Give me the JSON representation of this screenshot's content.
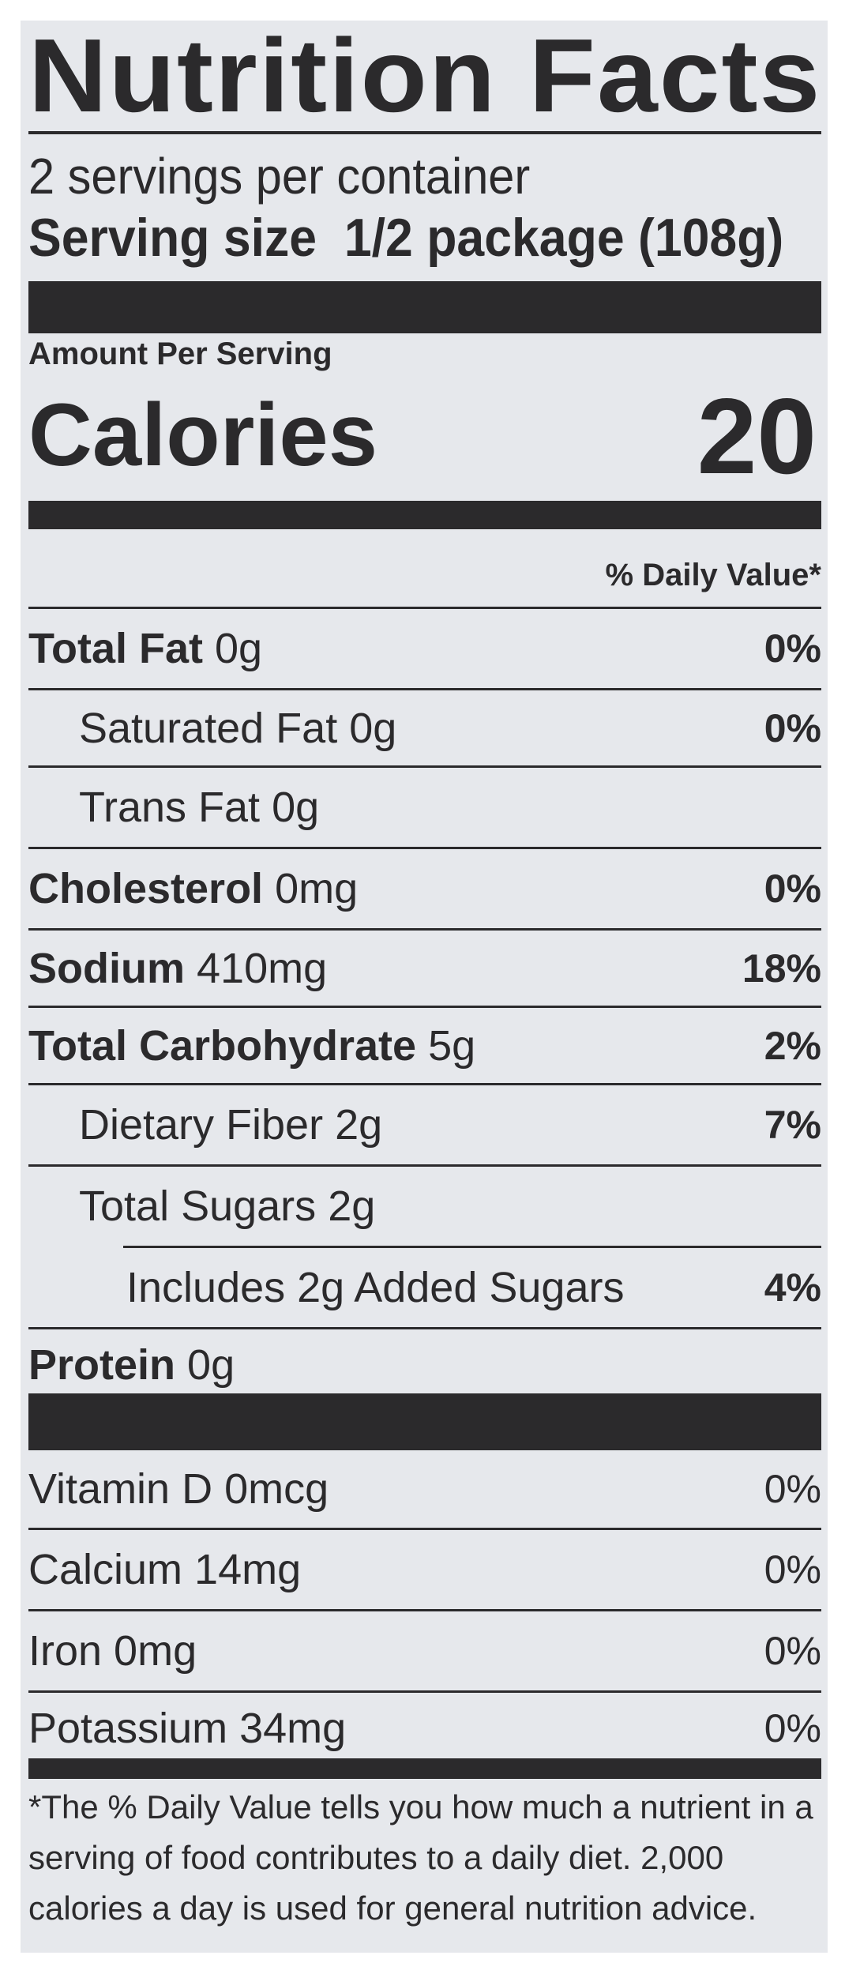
{
  "title": "Nutrition Facts",
  "servings_per_container": "2 servings per container",
  "serving_size": {
    "label": "Serving size",
    "value": "1/2 package (108g)"
  },
  "amount_per_serving": "Amount Per Serving",
  "calories": {
    "label": "Calories",
    "value": "20"
  },
  "daily_value_header": "% Daily Value*",
  "nutrients": [
    {
      "name": "Total Fat",
      "amount": "0g",
      "dv": "0%"
    },
    {
      "name": "Saturated Fat",
      "amount": "0g",
      "dv": "0%"
    },
    {
      "name": "Trans Fat",
      "amount": "0g",
      "dv": ""
    },
    {
      "name": "Cholesterol",
      "amount": "0mg",
      "dv": "0%"
    },
    {
      "name": "Sodium",
      "amount": "410mg",
      "dv": "18%"
    },
    {
      "name": "Total Carbohydrate",
      "amount": "5g",
      "dv": "2%"
    },
    {
      "name": "Dietary Fiber",
      "amount": "2g",
      "dv": "7%"
    },
    {
      "name": "Total Sugars",
      "amount": "2g",
      "dv": ""
    },
    {
      "name": "Includes 2g Added Sugars",
      "amount": "",
      "dv": "4%"
    },
    {
      "name": "Protein",
      "amount": "0g",
      "dv": ""
    }
  ],
  "vitamins": [
    {
      "name": "Vitamin D 0mcg",
      "dv": "0%"
    },
    {
      "name": "Calcium 14mg",
      "dv": "0%"
    },
    {
      "name": "Iron 0mg",
      "dv": "0%"
    },
    {
      "name": "Potassium 34mg",
      "dv": "0%"
    }
  ],
  "footnote": "*The % Daily Value tells you how much a nutrient in a serving of food contributes to a daily diet. 2,000 calories a day is used for general nutrition advice."
}
